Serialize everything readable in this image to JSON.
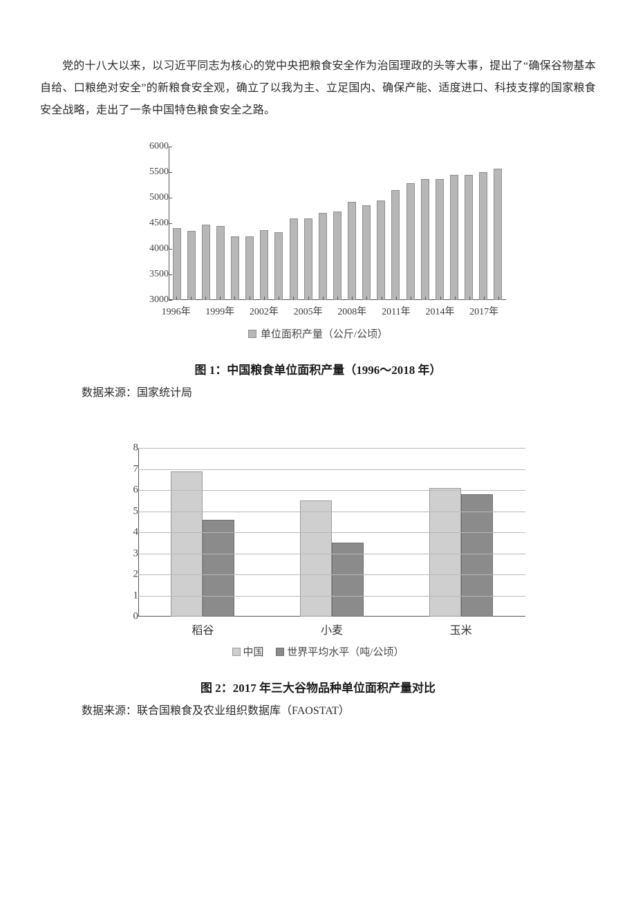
{
  "paragraph": "党的十八大以来，以习近平同志为核心的党中央把粮食安全作为治国理政的头等大事，提出了“确保谷物基本自给、口粮绝对安全”的新粮食安全观，确立了以我为主、立足国内、确保产能、适度进口、科技支撑的国家粮食安全战略，走出了一条中国特色粮食安全之路。",
  "chart1": {
    "type": "bar",
    "caption": "图 1：中国粮食单位面积产量（1996～2018 年）",
    "source": "数据来源：国家统计局",
    "legend": "单位面积产量（公斤/公顷）",
    "ylim": [
      3000,
      6000
    ],
    "ytick_step": 500,
    "yticks": [
      3000,
      3500,
      4000,
      4500,
      5000,
      5500,
      6000
    ],
    "bar_color": "#b7b7b7",
    "bar_border": "#8d8d8d",
    "axis_color": "#555555",
    "years": [
      1996,
      1997,
      1998,
      1999,
      2000,
      2001,
      2002,
      2003,
      2004,
      2005,
      2006,
      2007,
      2008,
      2009,
      2010,
      2011,
      2012,
      2013,
      2014,
      2015,
      2016,
      2017,
      2018
    ],
    "values": [
      4400,
      4350,
      4470,
      4450,
      4240,
      4250,
      4370,
      4320,
      4590,
      4600,
      4700,
      4730,
      4920,
      4850,
      4950,
      5150,
      5280,
      5370,
      5370,
      5450,
      5440,
      5500,
      5570
    ],
    "xlabel_years": [
      1996,
      1999,
      2002,
      2005,
      2008,
      2011,
      2014,
      2017
    ],
    "xlabel_suffix": "年",
    "label_fontsize": 14
  },
  "chart2": {
    "type": "grouped-bar",
    "caption": "图 2：2017 年三大谷物品种单位面积产量对比",
    "source": "数据来源：联合国粮食及农业组织数据库（FAOSTAT）",
    "legend_a": "中国",
    "legend_b": "世界平均水平（吨/公顷）",
    "ylim": [
      0,
      8
    ],
    "ytick_step": 1,
    "yticks": [
      0,
      1,
      2,
      3,
      4,
      5,
      6,
      7,
      8
    ],
    "grid_color": "#b8b8b8",
    "color_a": "#cfcfcf",
    "color_a_border": "#9a9a9a",
    "color_b": "#8b8b8b",
    "color_b_border": "#6d6d6d",
    "categories": [
      "稻谷",
      "小麦",
      "玉米"
    ],
    "series_a": [
      6.9,
      5.5,
      6.1
    ],
    "series_b": [
      4.6,
      3.5,
      5.8
    ],
    "label_fontsize": 16
  }
}
